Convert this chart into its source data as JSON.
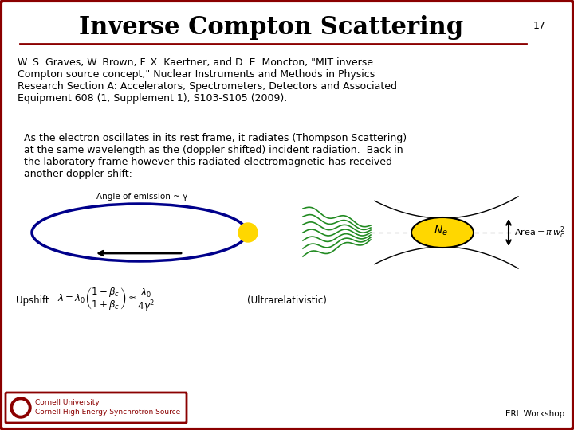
{
  "title": "Inverse Compton Scattering",
  "border_color": "#8B0000",
  "bg_color": "#FFFFFF",
  "title_fontsize": 22,
  "ref_line1": "W. S. Graves, W. Brown, F. X. Kaertner, and D. E. Moncton, \"MIT inverse",
  "ref_line2": "Compton source concept,\" Nuclear Instruments and Methods in Physics",
  "ref_line3": "Research Section A: Accelerators, Spectrometers, Detectors and Associated",
  "ref_line4": "Equipment 608 (1, Supplement 1), S103-S105 (2009).",
  "body_line1": "As the electron oscillates in its rest frame, it radiates (Thompson Scattering)",
  "body_line2": "at the same wavelength as the (doppler shifted) incident radiation.  Back in",
  "body_line3": "the laboratory frame however this radiated electromagnetic has received",
  "body_line4": "another doppler shift:",
  "angle_label": "Angle of emission ~ γ",
  "upshift_label": "Upshift:",
  "ultrarelativistic": "(Ultrarelativistic)",
  "Ne_label": "N",
  "Ne_sub": "e",
  "footer_line1": "Cornell University",
  "footer_line2": "Cornell High Energy Synchrotron Source",
  "footer_right": "ERL Workshop",
  "page_num": "17",
  "ellipse_color": "#00008B",
  "electron_color": "#FFD700",
  "ring_color": "#CC2200",
  "arrow_color": "#000000",
  "green_color": "#228B22",
  "Ne_bg": "#FFD700"
}
